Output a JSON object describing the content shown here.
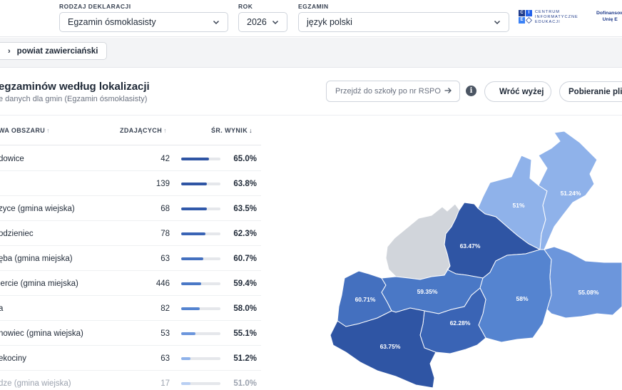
{
  "filters": {
    "declaration_type": {
      "label": "RODZAJ DEKLARACJI",
      "value": "Egzamin ósmoklasisty"
    },
    "year": {
      "label": "ROK",
      "value": "2026"
    },
    "exam": {
      "label": "EGZAMIN",
      "value": "język polski"
    }
  },
  "branding": {
    "cie_lines": [
      "CENTRUM",
      "INFORMATYCZNE",
      "EDUKACJI"
    ],
    "cie_letters": [
      "C",
      "I",
      "E"
    ],
    "funding_lines": [
      "Dofinansow",
      "Unię E"
    ]
  },
  "breadcrumb": {
    "label": "powiat zawierciański"
  },
  "section": {
    "title": "egzaminów według lokalizacji",
    "subtitle": "e danych dla gmin (Egzamin ósmoklasisty)"
  },
  "rspo": {
    "placeholder": "Przejdź do szkoły po nr RSPO"
  },
  "buttons": {
    "back": "Wróć wyżej",
    "download": "Pobieranie plikó"
  },
  "table": {
    "headers": {
      "name": "WA OBSZARU",
      "count": "ZDAJĄCYCH",
      "score": "ŚR. WYNIK"
    },
    "sort_icons": {
      "name": "↑",
      "count": "↑",
      "score": "↓"
    },
    "rows": [
      {
        "name": "dowice",
        "count": "42",
        "score": "65.0%",
        "fraction": 0.65,
        "color": "#2f55a4"
      },
      {
        "name": "",
        "count": "139",
        "score": "63.8%",
        "fraction": 0.638,
        "color": "#2f55a4"
      },
      {
        "name": "zyce (gmina wiejska)",
        "count": "68",
        "score": "63.5%",
        "fraction": 0.635,
        "color": "#3159aa"
      },
      {
        "name": "odzieniec",
        "count": "78",
        "score": "62.3%",
        "fraction": 0.623,
        "color": "#3a64b5"
      },
      {
        "name": "ęba (gmina miejska)",
        "count": "63",
        "score": "60.7%",
        "fraction": 0.607,
        "color": "#4470bf"
      },
      {
        "name": "iercie (gmina miejska)",
        "count": "446",
        "score": "59.4%",
        "fraction": 0.594,
        "color": "#4a78c6"
      },
      {
        "name": "a",
        "count": "82",
        "score": "58.0%",
        "fraction": 0.58,
        "color": "#5584d0"
      },
      {
        "name": "nowiec (gmina wiejska)",
        "count": "53",
        "score": "55.1%",
        "fraction": 0.551,
        "color": "#6c96dc"
      },
      {
        "name": "ekociny",
        "count": "63",
        "score": "51.2%",
        "fraction": 0.512,
        "color": "#8fb2ea"
      },
      {
        "name": "dze (gmina wiejska)",
        "count": "17",
        "score": "51.0%",
        "fraction": 0.51,
        "color": "#b9cff3",
        "faded": true
      }
    ]
  },
  "map": {
    "regions": [
      {
        "id": "north-east",
        "label": "51.24%",
        "color": "#8fb2ea"
      },
      {
        "id": "north",
        "label": "51%",
        "color": "#8fb2ea"
      },
      {
        "id": "center-north",
        "label": "63.47%",
        "color": "#2f55a4"
      },
      {
        "id": "west",
        "label": "60.71%",
        "color": "#4470bf"
      },
      {
        "id": "center",
        "label": "59.35%",
        "color": "#4a78c6"
      },
      {
        "id": "center-east",
        "label": "58%",
        "color": "#5584d0"
      },
      {
        "id": "east",
        "label": "55.08%",
        "color": "#6c96dc"
      },
      {
        "id": "south-center",
        "label": "62.28%",
        "color": "#3a64b5"
      },
      {
        "id": "south-west",
        "label": "63.75%",
        "color": "#2f55a4"
      },
      {
        "id": "no-data",
        "label": "",
        "color": "#d1d5db"
      }
    ]
  }
}
